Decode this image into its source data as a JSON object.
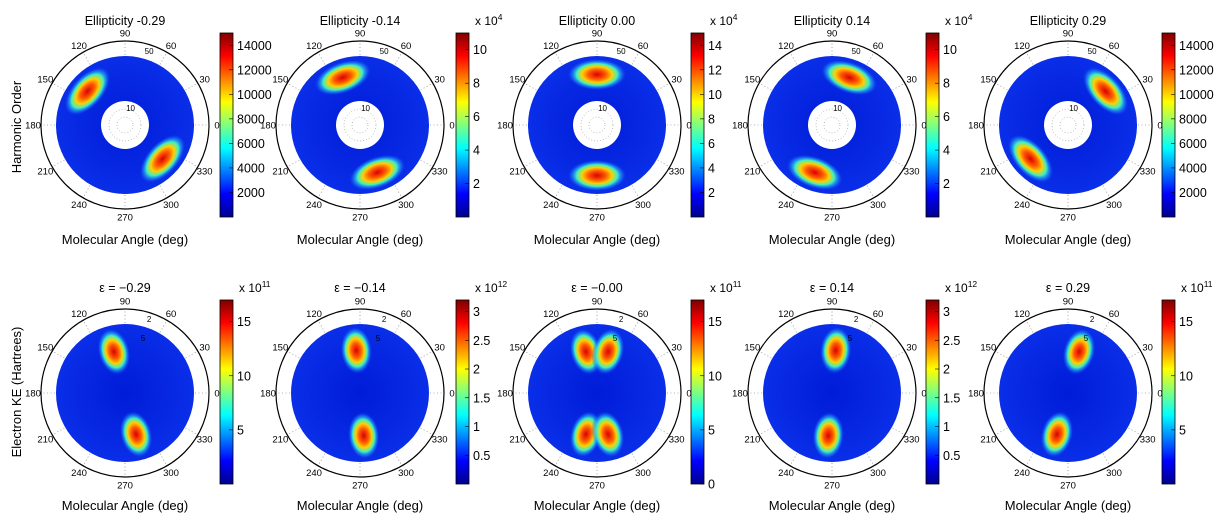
{
  "figure": {
    "row_labels": [
      "Harmonic Order",
      "Electron KE (Hartrees)"
    ],
    "angle_labels": [
      "90",
      "60",
      "30",
      "0",
      "330",
      "300",
      "270",
      "240",
      "210",
      "180",
      "150",
      "120"
    ]
  },
  "chart_data": [
    {
      "type": "heatmap",
      "projection": "polar",
      "title": "Ellipticity -0.29",
      "xlabel": "Molecular Angle (deg)",
      "ylabel": "Harmonic Order",
      "radial_ticks": [
        "50",
        "10"
      ],
      "colorbar": {
        "ticks": [
          "2000",
          "4000",
          "6000",
          "8000",
          "10000",
          "12000",
          "14000"
        ],
        "exponent_base": "",
        "exponent": "",
        "range": [
          0,
          15000
        ]
      },
      "hotspots": [
        {
          "angle_deg": 138,
          "strength": 1.0
        },
        {
          "angle_deg": 318,
          "strength": 1.0
        }
      ],
      "colormap": "jet",
      "grid": true
    },
    {
      "type": "heatmap",
      "projection": "polar",
      "title": "Ellipticity -0.14",
      "xlabel": "Molecular Angle (deg)",
      "ylabel": "",
      "radial_ticks": [
        "50",
        "10"
      ],
      "colorbar": {
        "ticks": [
          "2",
          "4",
          "6",
          "8",
          "10"
        ],
        "exponent_base": "x 10",
        "exponent": "4",
        "range": [
          0,
          11
        ]
      },
      "hotspots": [
        {
          "angle_deg": 110,
          "strength": 1.0
        },
        {
          "angle_deg": 290,
          "strength": 1.0
        }
      ],
      "colormap": "jet",
      "grid": true
    },
    {
      "type": "heatmap",
      "projection": "polar",
      "title": "Ellipticity 0.00",
      "xlabel": "Molecular Angle (deg)",
      "ylabel": "",
      "radial_ticks": [
        "50",
        "10"
      ],
      "colorbar": {
        "ticks": [
          "2",
          "4",
          "6",
          "8",
          "10",
          "12",
          "14"
        ],
        "exponent_base": "x 10",
        "exponent": "4",
        "range": [
          0,
          15
        ]
      },
      "hotspots": [
        {
          "angle_deg": 90,
          "strength": 1.0
        },
        {
          "angle_deg": 270,
          "strength": 1.0
        }
      ],
      "colormap": "jet",
      "grid": true
    },
    {
      "type": "heatmap",
      "projection": "polar",
      "title": "Ellipticity 0.14",
      "xlabel": "Molecular Angle (deg)",
      "ylabel": "",
      "radial_ticks": [
        "50",
        "10"
      ],
      "colorbar": {
        "ticks": [
          "2",
          "4",
          "6",
          "8",
          "10"
        ],
        "exponent_base": "x 10",
        "exponent": "4",
        "range": [
          0,
          11
        ]
      },
      "hotspots": [
        {
          "angle_deg": 70,
          "strength": 1.0
        },
        {
          "angle_deg": 250,
          "strength": 1.0
        }
      ],
      "colormap": "jet",
      "grid": true
    },
    {
      "type": "heatmap",
      "projection": "polar",
      "title": "Ellipticity 0.29",
      "xlabel": "Molecular Angle (deg)",
      "ylabel": "",
      "radial_ticks": [
        "50",
        "10"
      ],
      "colorbar": {
        "ticks": [
          "2000",
          "4000",
          "6000",
          "8000",
          "10000",
          "12000",
          "14000"
        ],
        "exponent_base": "",
        "exponent": "",
        "range": [
          0,
          15000
        ]
      },
      "hotspots": [
        {
          "angle_deg": 42,
          "strength": 1.0
        },
        {
          "angle_deg": 222,
          "strength": 1.0
        }
      ],
      "colormap": "jet",
      "grid": true
    },
    {
      "type": "heatmap",
      "projection": "polar",
      "title": "ε = −0.29",
      "xlabel": "Molecular Angle (deg)",
      "ylabel": "Electron KE (Hartrees)",
      "radial_ticks": [
        "2",
        "5"
      ],
      "colorbar": {
        "ticks": [
          "5",
          "10",
          "15"
        ],
        "exponent_base": "x 10",
        "exponent": "11",
        "range": [
          0,
          17
        ]
      },
      "hotspots": [
        {
          "angle_deg": 105,
          "strength": 1.0
        },
        {
          "angle_deg": 285,
          "strength": 1.0
        }
      ],
      "colormap": "jet",
      "grid": true
    },
    {
      "type": "heatmap",
      "projection": "polar",
      "title": "ε = −0.14",
      "xlabel": "Molecular Angle (deg)",
      "ylabel": "",
      "radial_ticks": [
        "2",
        "5"
      ],
      "colorbar": {
        "ticks": [
          "0.5",
          "1",
          "1.5",
          "2",
          "2.5",
          "3"
        ],
        "exponent_base": "x 10",
        "exponent": "12",
        "range": [
          0,
          3.2
        ]
      },
      "hotspots": [
        {
          "angle_deg": 95,
          "strength": 1.0
        },
        {
          "angle_deg": 275,
          "strength": 1.0
        }
      ],
      "colormap": "jet",
      "grid": true
    },
    {
      "type": "heatmap",
      "projection": "polar",
      "title": "ε = −0.00",
      "xlabel": "Molecular Angle (deg)",
      "ylabel": "",
      "radial_ticks": [
        "2",
        "5"
      ],
      "colorbar": {
        "ticks": [
          "0",
          "5",
          "10",
          "15"
        ],
        "exponent_base": "x 10",
        "exponent": "11",
        "range": [
          0,
          17
        ]
      },
      "hotspots": [
        {
          "angle_deg": 105,
          "strength": 1.0
        },
        {
          "angle_deg": 75,
          "strength": 1.0
        },
        {
          "angle_deg": 255,
          "strength": 1.0
        },
        {
          "angle_deg": 285,
          "strength": 1.0
        }
      ],
      "colormap": "jet",
      "grid": true
    },
    {
      "type": "heatmap",
      "projection": "polar",
      "title": "ε = 0.14",
      "xlabel": "Molecular Angle (deg)",
      "ylabel": "",
      "radial_ticks": [
        "2",
        "5"
      ],
      "colorbar": {
        "ticks": [
          "0.5",
          "1",
          "1.5",
          "2",
          "2.5",
          "3"
        ],
        "exponent_base": "x 10",
        "exponent": "12",
        "range": [
          0,
          3.2
        ]
      },
      "hotspots": [
        {
          "angle_deg": 85,
          "strength": 1.0
        },
        {
          "angle_deg": 265,
          "strength": 1.0
        }
      ],
      "colormap": "jet",
      "grid": true
    },
    {
      "type": "heatmap",
      "projection": "polar",
      "title": "ε = 0.29",
      "xlabel": "Molecular Angle (deg)",
      "ylabel": "",
      "radial_ticks": [
        "2",
        "5"
      ],
      "colorbar": {
        "ticks": [
          "5",
          "10",
          "15"
        ],
        "exponent_base": "x 10",
        "exponent": "11",
        "range": [
          0,
          17
        ]
      },
      "hotspots": [
        {
          "angle_deg": 75,
          "strength": 1.0
        },
        {
          "angle_deg": 255,
          "strength": 1.0
        }
      ],
      "colormap": "jet",
      "grid": true
    }
  ]
}
